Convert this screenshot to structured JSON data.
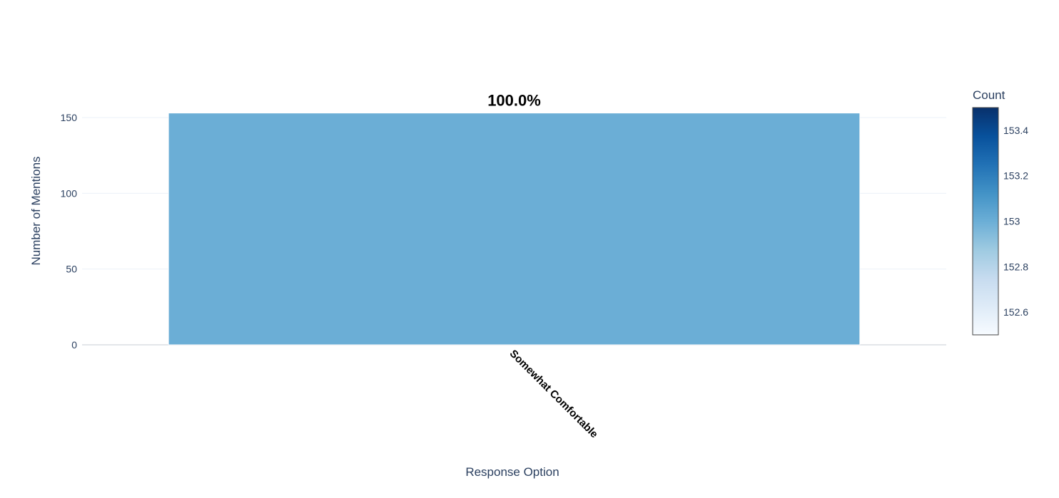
{
  "chart_data": {
    "type": "bar",
    "title": "",
    "categories": [
      "Somewhat Comfortable"
    ],
    "values": [
      153
    ],
    "data_labels": [
      "100.0%"
    ],
    "xlabel": "Response Option",
    "ylabel": "Number of Mentions",
    "ylim": [
      0,
      160
    ],
    "yticks": [
      0,
      50,
      100,
      150
    ],
    "grid": true,
    "bar_color": "#6baed6",
    "colorbar": {
      "title": "Count",
      "range": [
        152.5,
        153.5
      ],
      "ticks": [
        "152.6",
        "152.8",
        "153",
        "153.2",
        "153.4"
      ],
      "tick_values": [
        152.6,
        152.8,
        153.0,
        153.2,
        153.4
      ],
      "colorscale": "Blues",
      "colors": [
        "#f7fbff",
        "#deebf7",
        "#c6dbef",
        "#9ecae1",
        "#6baed6",
        "#4292c6",
        "#2171b5",
        "#08519c",
        "#08306b"
      ]
    }
  }
}
